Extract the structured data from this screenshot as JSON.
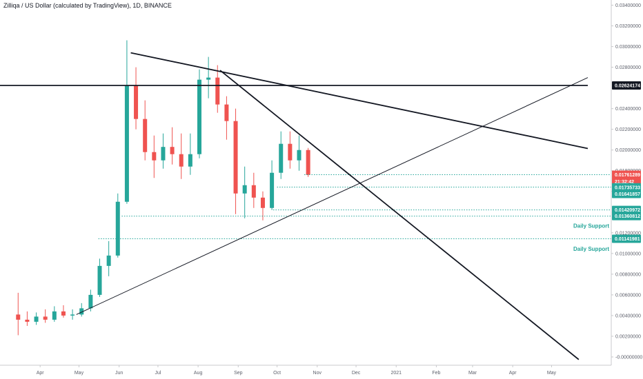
{
  "chart_data": {
    "type": "candlestick",
    "title": "Zilliqa / US Dollar (calculated by TradingView), 1D, BINANCE",
    "x_tick_labels": [
      "Apr",
      "May",
      "Jun",
      "Jul",
      "Aug",
      "Sep",
      "Oct",
      "Nov",
      "Dec",
      "2021",
      "Feb",
      "Mar",
      "Apr",
      "May"
    ],
    "y_tick_labels": [
      "0.03400000",
      "0.03200000",
      "0.03000000",
      "0.02800000",
      "0.02400000",
      "0.02200000",
      "0.02000000",
      "0.01800000",
      "0.01600000",
      "0.01200000",
      "0.01000000",
      "0.00800000",
      "0.00600000",
      "0.00400000",
      "0.00200000",
      "-0.00000000"
    ],
    "y_tick_values": [
      0.034,
      0.032,
      0.03,
      0.028,
      0.024,
      0.022,
      0.02,
      0.018,
      0.016,
      0.012,
      0.01,
      0.008,
      0.006,
      0.004,
      0.002,
      0.0
    ],
    "ylim": [
      -0.0008,
      0.0345
    ],
    "candles": [
      {
        "d": "2020-03-15",
        "o": 0.0041,
        "h": 0.0062,
        "l": 0.0021,
        "c": 0.0036
      },
      {
        "d": "2020-03-22",
        "o": 0.0036,
        "h": 0.0044,
        "l": 0.003,
        "c": 0.0034
      },
      {
        "d": "2020-03-29",
        "o": 0.0034,
        "h": 0.0043,
        "l": 0.0031,
        "c": 0.0039
      },
      {
        "d": "2020-04-05",
        "o": 0.0039,
        "h": 0.0046,
        "l": 0.0033,
        "c": 0.0036
      },
      {
        "d": "2020-04-12",
        "o": 0.0036,
        "h": 0.0049,
        "l": 0.0034,
        "c": 0.0044
      },
      {
        "d": "2020-04-19",
        "o": 0.0044,
        "h": 0.005,
        "l": 0.0038,
        "c": 0.004
      },
      {
        "d": "2020-04-26",
        "o": 0.004,
        "h": 0.0046,
        "l": 0.0036,
        "c": 0.0041
      },
      {
        "d": "2020-05-03",
        "o": 0.0041,
        "h": 0.0052,
        "l": 0.0039,
        "c": 0.0047
      },
      {
        "d": "2020-05-10",
        "o": 0.0047,
        "h": 0.0065,
        "l": 0.0044,
        "c": 0.006
      },
      {
        "d": "2020-05-17",
        "o": 0.006,
        "h": 0.0095,
        "l": 0.0058,
        "c": 0.0088
      },
      {
        "d": "2020-05-24",
        "o": 0.0088,
        "h": 0.0112,
        "l": 0.0078,
        "c": 0.0098
      },
      {
        "d": "2020-05-31",
        "o": 0.0098,
        "h": 0.0158,
        "l": 0.0096,
        "c": 0.015
      },
      {
        "d": "2020-06-07",
        "o": 0.015,
        "h": 0.0306,
        "l": 0.0148,
        "c": 0.0262
      },
      {
        "d": "2020-06-14",
        "o": 0.0262,
        "h": 0.028,
        "l": 0.022,
        "c": 0.023
      },
      {
        "d": "2020-06-21",
        "o": 0.023,
        "h": 0.0248,
        "l": 0.019,
        "c": 0.0198
      },
      {
        "d": "2020-06-28",
        "o": 0.0198,
        "h": 0.0214,
        "l": 0.0173,
        "c": 0.019
      },
      {
        "d": "2020-07-05",
        "o": 0.019,
        "h": 0.0216,
        "l": 0.0182,
        "c": 0.0203
      },
      {
        "d": "2020-07-12",
        "o": 0.0203,
        "h": 0.0222,
        "l": 0.0186,
        "c": 0.0196
      },
      {
        "d": "2020-07-19",
        "o": 0.0196,
        "h": 0.0216,
        "l": 0.0172,
        "c": 0.0184
      },
      {
        "d": "2020-07-26",
        "o": 0.0184,
        "h": 0.0216,
        "l": 0.0176,
        "c": 0.0196
      },
      {
        "d": "2020-08-02",
        "o": 0.0196,
        "h": 0.0278,
        "l": 0.0192,
        "c": 0.0268
      },
      {
        "d": "2020-08-09",
        "o": 0.0268,
        "h": 0.029,
        "l": 0.025,
        "c": 0.027
      },
      {
        "d": "2020-08-16",
        "o": 0.027,
        "h": 0.0282,
        "l": 0.0236,
        "c": 0.0244
      },
      {
        "d": "2020-08-23",
        "o": 0.0244,
        "h": 0.0252,
        "l": 0.021,
        "c": 0.0228
      },
      {
        "d": "2020-08-30",
        "o": 0.0228,
        "h": 0.024,
        "l": 0.0138,
        "c": 0.0158
      },
      {
        "d": "2020-09-06",
        "o": 0.0158,
        "h": 0.0184,
        "l": 0.0134,
        "c": 0.0166
      },
      {
        "d": "2020-09-13",
        "o": 0.0166,
        "h": 0.0178,
        "l": 0.0144,
        "c": 0.0154
      },
      {
        "d": "2020-09-20",
        "o": 0.0154,
        "h": 0.016,
        "l": 0.0132,
        "c": 0.0144
      },
      {
        "d": "2020-09-27",
        "o": 0.0144,
        "h": 0.019,
        "l": 0.0142,
        "c": 0.0178
      },
      {
        "d": "2020-10-04",
        "o": 0.0178,
        "h": 0.0218,
        "l": 0.0172,
        "c": 0.0206
      },
      {
        "d": "2020-10-11",
        "o": 0.0206,
        "h": 0.0218,
        "l": 0.0182,
        "c": 0.019
      },
      {
        "d": "2020-10-18",
        "o": 0.019,
        "h": 0.0214,
        "l": 0.018,
        "c": 0.02
      },
      {
        "d": "2020-10-25",
        "o": 0.02,
        "h": 0.0202,
        "l": 0.0174,
        "c": 0.0176
      }
    ],
    "trendlines": [
      {
        "from": [
          "2020-06-10",
          0.0294
        ],
        "to": [
          "2021-05-29",
          0.02015
        ]
      },
      {
        "from": [
          "2020-08-18",
          0.0277
        ],
        "to": [
          "2021-05-22",
          -0.00025
        ]
      },
      {
        "from": [
          "2020-04-29",
          0.0041
        ],
        "to": [
          "2021-05-29",
          0.027
        ]
      },
      {
        "from": [
          "2020-03-01",
          0.02624
        ],
        "to": [
          "2021-05-29",
          0.02624
        ]
      }
    ],
    "horizontal_levels": [
      {
        "value": 0.01761289,
        "label": "0.01761289",
        "style": "dotted",
        "start": "2020-10-22"
      },
      {
        "value": 0.01735733,
        "label": "0.01735733",
        "style": "none",
        "start": null
      },
      {
        "value": 0.01641857,
        "label": "0.01641857",
        "style": "dotted",
        "start": "2020-10-01"
      },
      {
        "value": 0.01420972,
        "label": "0.01420972",
        "style": "dotted",
        "start": "2020-09-28"
      },
      {
        "value": 0.01360812,
        "label": "0.01360812",
        "style": "dotted",
        "start": "2020-06-03"
      },
      {
        "value": 0.01141981,
        "label": "0.01141981",
        "style": "dotted",
        "start": "2020-05-16"
      }
    ],
    "price_tags": [
      {
        "value": 0.02624174,
        "label": "0.02624174",
        "bg": "#131722",
        "fg": "#ffffff"
      },
      {
        "value": 0.01761289,
        "label": "0.01761289",
        "bg": "#ef5350",
        "fg": "#ffffff"
      },
      {
        "value": 0.01695,
        "label": "21:32:42",
        "bg": "#ef5350",
        "fg": "#ffffff"
      },
      {
        "value": 0.0164,
        "label": "0.01735733",
        "bg": "#26a69a",
        "fg": "#ffffff"
      },
      {
        "value": 0.01575,
        "label": "0.01641857",
        "bg": "#26a69a",
        "fg": "#ffffff"
      },
      {
        "value": 0.01420972,
        "label": "0.01420972",
        "bg": "#26a69a",
        "fg": "#ffffff"
      },
      {
        "value": 0.01360812,
        "label": "0.01360812",
        "bg": "#26a69a",
        "fg": "#ffffff"
      },
      {
        "value": 0.01141981,
        "label": "0.01141981",
        "bg": "#26a69a",
        "fg": "#ffffff"
      }
    ],
    "annotations": [
      {
        "text": "Daily Support",
        "value": 0.0127
      },
      {
        "text": "Daily Support",
        "value": 0.01047
      }
    ],
    "colors": {
      "up": "#26a69a",
      "down": "#ef5350",
      "line": "#131722",
      "level": "#26a69a",
      "axis": "#c8c9cc"
    }
  }
}
